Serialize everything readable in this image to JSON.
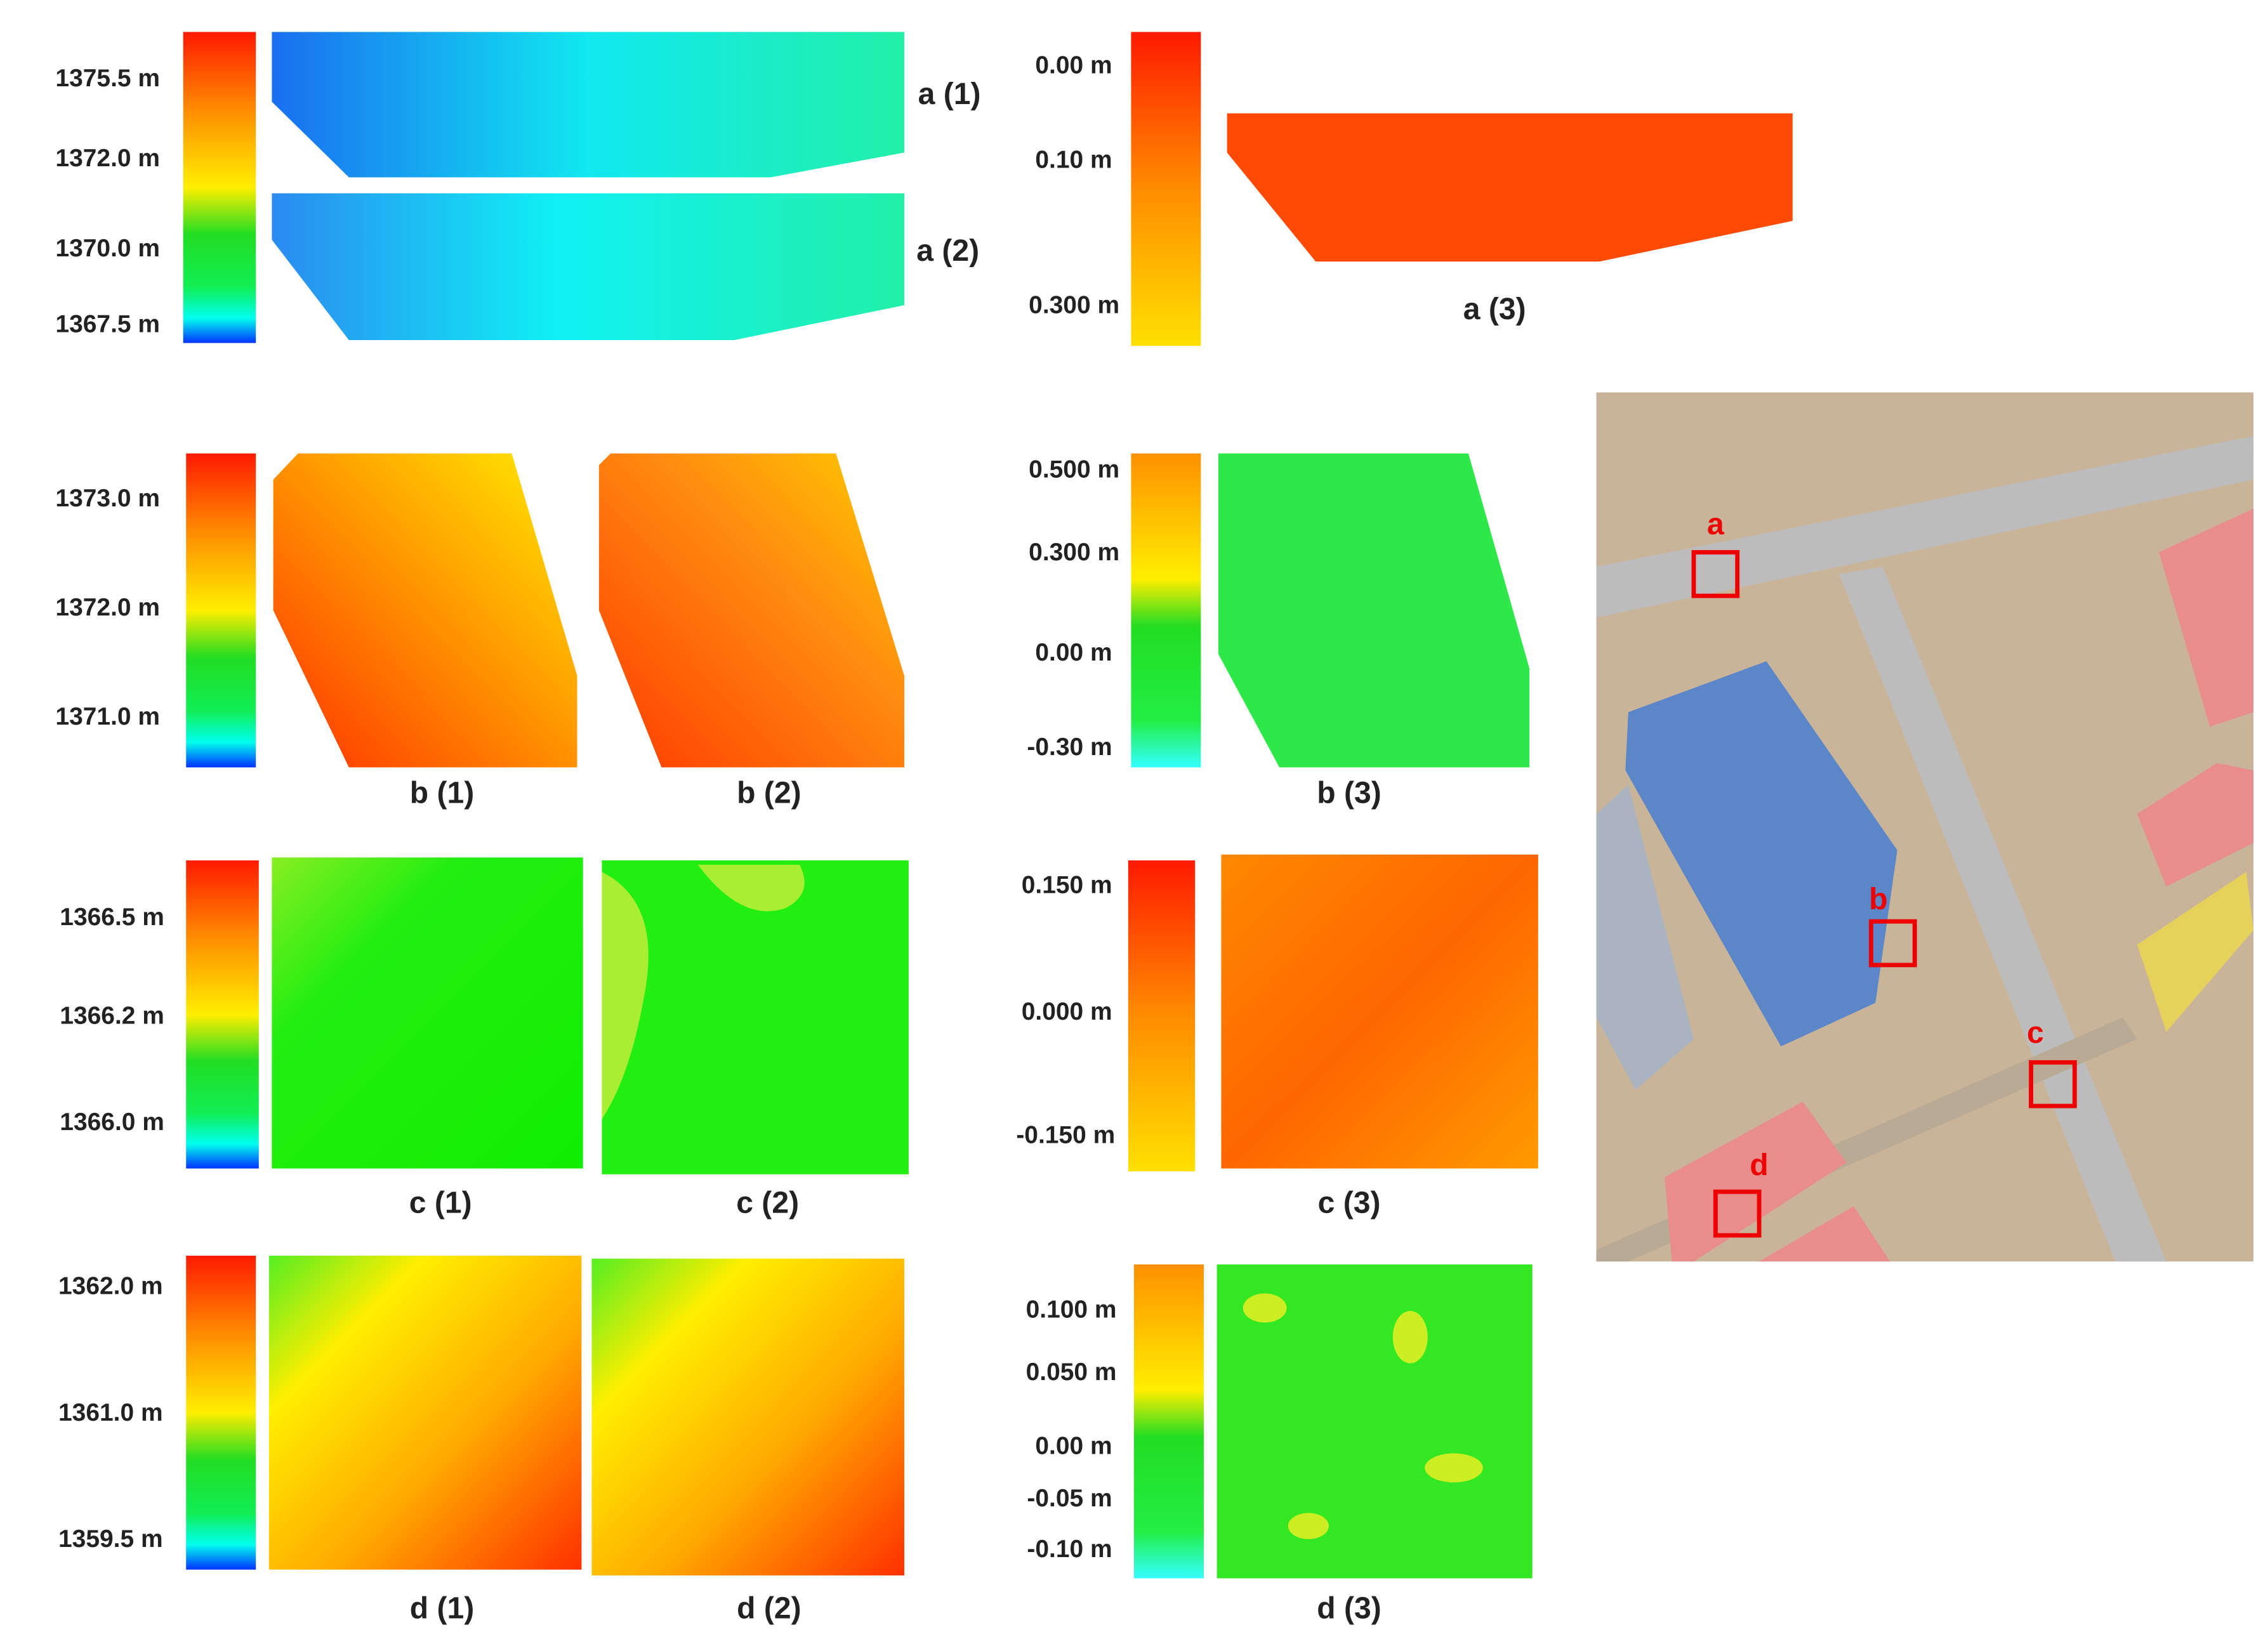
{
  "panels": {
    "a": {
      "scale_elevation": [
        "1375.5 m",
        "1372.0 m",
        "1370.0 m",
        "1367.5 m"
      ],
      "scale_difference": [
        "0.00 m",
        "0.10 m",
        "0.300 m"
      ],
      "labels": [
        "a (1)",
        "a (2)",
        "a (3)"
      ]
    },
    "b": {
      "scale_elevation": [
        "1373.0 m",
        "1372.0 m",
        "1371.0 m"
      ],
      "scale_difference": [
        "0.500 m",
        "0.300 m",
        "0.00 m",
        "-0.30 m"
      ],
      "labels": [
        "b (1)",
        "b (2)",
        "b (3)"
      ]
    },
    "c": {
      "scale_elevation": [
        "1366.5 m",
        "1366.2 m",
        "1366.0 m"
      ],
      "scale_difference": [
        "0.150 m",
        "0.000 m",
        "-0.150 m"
      ],
      "labels": [
        "c (1)",
        "c (2)",
        "c (3)"
      ]
    },
    "d": {
      "scale_elevation": [
        "1362.0 m",
        "1361.0 m",
        "1359.5 m"
      ],
      "scale_difference": [
        "0.100 m",
        "0.050 m",
        "0.00 m",
        "-0.05 m",
        "-0.10 m"
      ],
      "labels": [
        "d (1)",
        "d (2)",
        "d (3)"
      ]
    }
  },
  "map": {
    "markers": [
      "a",
      "b",
      "c",
      "d"
    ]
  }
}
